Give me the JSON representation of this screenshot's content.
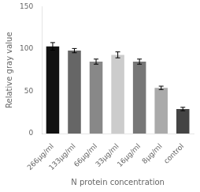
{
  "chart_data": {
    "type": "bar",
    "categories": [
      "266μg/ml",
      "133μg/ml",
      "66μg/ml",
      "33μg/ml",
      "16μg/ml",
      "8μg/ml",
      "control"
    ],
    "values": [
      103,
      98,
      85,
      93,
      85,
      54,
      29
    ],
    "errors": [
      4.5,
      2.5,
      3.0,
      3.5,
      3.0,
      2.0,
      2.0
    ],
    "colors": [
      "#111111",
      "#666666",
      "#888888",
      "#cccccc",
      "#777777",
      "#aaaaaa",
      "#444444"
    ],
    "xlabel": "N protein concentration",
    "ylabel": "Relative gray value",
    "ylim": [
      0,
      150
    ],
    "yticks": [
      0,
      50,
      100,
      150
    ],
    "grid": false
  }
}
